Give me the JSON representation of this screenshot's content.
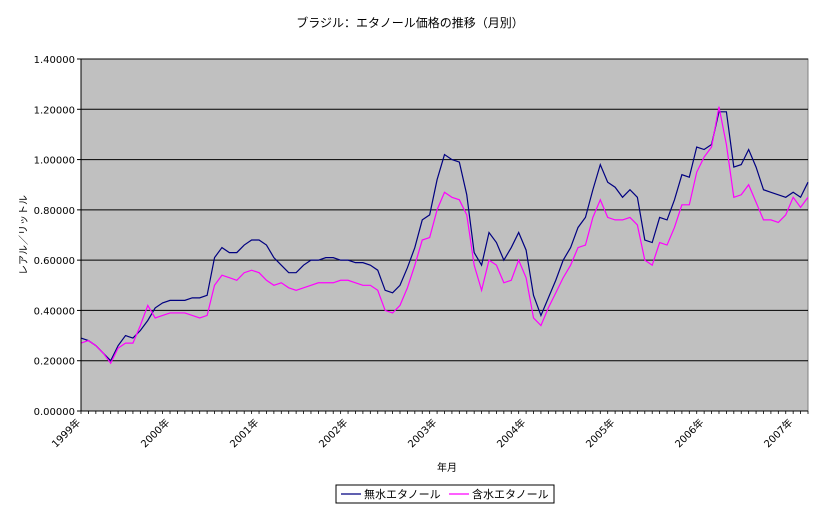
{
  "chart_data": {
    "type": "line",
    "title": "ブラジル：エタノール価格の推移（月別）",
    "xlabel": "年月",
    "ylabel": "レアル／リットル",
    "ylim": [
      0,
      1.4
    ],
    "yticks": [
      0,
      0.2,
      0.4,
      0.6,
      0.8,
      1.0,
      1.2,
      1.4
    ],
    "ytick_labels": [
      "0.00000",
      "0.20000",
      "0.40000",
      "0.60000",
      "0.80000",
      "1.00000",
      "1.20000",
      "1.40000"
    ],
    "xticks": [
      "1999年",
      "2000年",
      "2001年",
      "2002年",
      "2003年",
      "2004年",
      "2005年",
      "2006年",
      "2007年"
    ],
    "grid": true,
    "legend_position": "bottom",
    "series": [
      {
        "name": "無水エタノール",
        "color": "#000080",
        "values": [
          0.29,
          0.28,
          0.26,
          0.23,
          0.2,
          0.26,
          0.3,
          0.29,
          0.32,
          0.36,
          0.41,
          0.43,
          0.44,
          0.44,
          0.44,
          0.45,
          0.45,
          0.46,
          0.61,
          0.65,
          0.63,
          0.63,
          0.66,
          0.68,
          0.68,
          0.66,
          0.61,
          0.58,
          0.55,
          0.55,
          0.58,
          0.6,
          0.6,
          0.61,
          0.61,
          0.6,
          0.6,
          0.59,
          0.59,
          0.58,
          0.56,
          0.48,
          0.47,
          0.5,
          0.57,
          0.65,
          0.76,
          0.78,
          0.92,
          1.02,
          1.0,
          0.99,
          0.86,
          0.63,
          0.58,
          0.71,
          0.67,
          0.6,
          0.65,
          0.71,
          0.64,
          0.46,
          0.38,
          0.45,
          0.52,
          0.6,
          0.65,
          0.73,
          0.77,
          0.88,
          0.98,
          0.91,
          0.89,
          0.85,
          0.88,
          0.85,
          0.68,
          0.67,
          0.77,
          0.76,
          0.84,
          0.94,
          0.93,
          1.05,
          1.04,
          1.06,
          1.19,
          1.19,
          0.97,
          0.98,
          1.04,
          0.97,
          0.88,
          0.87,
          0.86,
          0.85,
          0.87,
          0.85,
          0.91
        ]
      },
      {
        "name": "含水エタノール",
        "color": "#ff00ff",
        "values": [
          0.27,
          0.28,
          0.26,
          0.23,
          0.19,
          0.25,
          0.27,
          0.27,
          0.34,
          0.42,
          0.37,
          0.38,
          0.39,
          0.39,
          0.39,
          0.38,
          0.37,
          0.38,
          0.5,
          0.54,
          0.53,
          0.52,
          0.55,
          0.56,
          0.55,
          0.52,
          0.5,
          0.51,
          0.49,
          0.48,
          0.49,
          0.5,
          0.51,
          0.51,
          0.51,
          0.52,
          0.52,
          0.51,
          0.5,
          0.5,
          0.48,
          0.4,
          0.39,
          0.42,
          0.49,
          0.58,
          0.68,
          0.69,
          0.8,
          0.87,
          0.85,
          0.84,
          0.78,
          0.58,
          0.48,
          0.6,
          0.58,
          0.51,
          0.52,
          0.6,
          0.53,
          0.37,
          0.34,
          0.41,
          0.47,
          0.53,
          0.58,
          0.65,
          0.66,
          0.77,
          0.84,
          0.77,
          0.76,
          0.76,
          0.77,
          0.74,
          0.6,
          0.58,
          0.67,
          0.66,
          0.73,
          0.82,
          0.82,
          0.95,
          1.01,
          1.05,
          1.21,
          1.06,
          0.85,
          0.86,
          0.9,
          0.83,
          0.76,
          0.76,
          0.75,
          0.78,
          0.85,
          0.81,
          0.85
        ]
      }
    ]
  }
}
